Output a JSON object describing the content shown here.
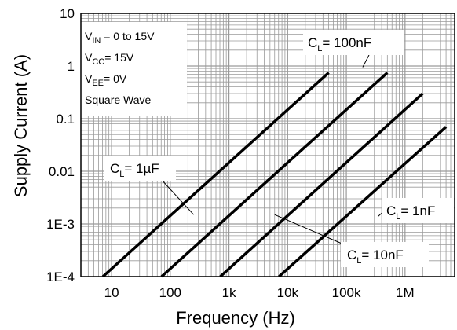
{
  "chart_data": {
    "type": "line",
    "title": "",
    "xlabel": "Frequency (Hz)",
    "ylabel": "Supply Current (A)",
    "x_scale": "log",
    "y_scale": "log",
    "xlim": [
      3,
      7000000
    ],
    "ylim": [
      0.0001,
      10
    ],
    "x_ticks": [
      {
        "value": 10,
        "label": "10"
      },
      {
        "value": 100,
        "label": "100"
      },
      {
        "value": 1000,
        "label": "1k"
      },
      {
        "value": 10000,
        "label": "10k"
      },
      {
        "value": 100000,
        "label": "100k"
      },
      {
        "value": 1000000,
        "label": "1M"
      }
    ],
    "y_ticks": [
      {
        "value": 10,
        "label": "10"
      },
      {
        "value": 1,
        "label": "1"
      },
      {
        "value": 0.1,
        "label": "0.1"
      },
      {
        "value": 0.01,
        "label": "0.01"
      },
      {
        "value": 0.001,
        "label": "1E-3"
      },
      {
        "value": 0.0001,
        "label": "1E-4"
      }
    ],
    "grid": true,
    "conditions": [
      {
        "id": "vin",
        "base": "V",
        "sub": "IN",
        "rest": " = 0 to 15V"
      },
      {
        "id": "vcc",
        "base": "V",
        "sub": "CC",
        "rest": "= 15V"
      },
      {
        "id": "vee",
        "base": "V",
        "sub": "EE",
        "rest": "= 0V"
      },
      {
        "id": "wave",
        "base": "Square Wave",
        "sub": "",
        "rest": ""
      }
    ],
    "series": [
      {
        "key": "c1uf",
        "label_base": "C",
        "label_sub": "L",
        "label_rest": "= 1µF",
        "x": [
          7.1,
          50000
        ],
        "y": [
          0.0001,
          0.75
        ],
        "label_anchor_x": 250,
        "label_anchor_y": 0.0015
      },
      {
        "key": "c100nf",
        "label_base": "C",
        "label_sub": "L",
        "label_rest": "= 100nF",
        "x": [
          71,
          500000
        ],
        "y": [
          0.0001,
          0.75
        ],
        "label_anchor_x": 190000,
        "label_anchor_y": 0.95
      },
      {
        "key": "c10nf",
        "label_base": "C",
        "label_sub": "L",
        "label_rest": "= 10nF",
        "x": [
          710,
          2000000
        ],
        "y": [
          0.0001,
          0.3
        ],
        "label_anchor_x": 6000,
        "label_anchor_y": 0.0015
      },
      {
        "key": "c1nf",
        "label_base": "C",
        "label_sub": "L",
        "label_rest": "= 1nF",
        "x": [
          7100,
          5000000
        ],
        "y": [
          0.0001,
          0.07
        ],
        "label_anchor_x": 350000,
        "label_anchor_y": 0.0014
      }
    ]
  }
}
